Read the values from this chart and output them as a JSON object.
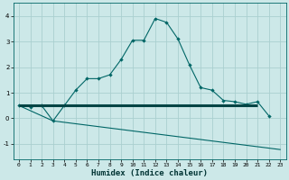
{
  "xlabel": "Humidex (Indice chaleur)",
  "background_color": "#cce8e8",
  "grid_color": "#aacfcf",
  "line_color": "#006666",
  "hline_color": "#004444",
  "x_ticks": [
    0,
    1,
    2,
    3,
    4,
    5,
    6,
    7,
    8,
    9,
    10,
    11,
    12,
    13,
    14,
    15,
    16,
    17,
    18,
    19,
    20,
    21,
    22,
    23
  ],
  "y_ticks": [
    -1,
    0,
    1,
    2,
    3,
    4
  ],
  "ylim": [
    -1.6,
    4.5
  ],
  "xlim": [
    -0.5,
    23.5
  ],
  "curve1_x": [
    0,
    1,
    2,
    3,
    4,
    5,
    6,
    7,
    8,
    9,
    10,
    11,
    12,
    13,
    14,
    15,
    16,
    17,
    18,
    19,
    20,
    21,
    22
  ],
  "curve1_y": [
    0.5,
    0.45,
    0.5,
    -0.1,
    0.5,
    1.1,
    1.55,
    1.55,
    1.7,
    2.3,
    3.05,
    3.05,
    3.9,
    3.75,
    3.1,
    2.1,
    1.2,
    1.1,
    0.7,
    0.65,
    0.55,
    0.65,
    0.1
  ],
  "curve2_x": [
    0,
    3,
    23
  ],
  "curve2_y": [
    0.5,
    -0.1,
    -1.22
  ],
  "hline_y": 0.5,
  "hline_x_start": 0,
  "hline_x_end": 21,
  "hline_linewidth": 2.2
}
